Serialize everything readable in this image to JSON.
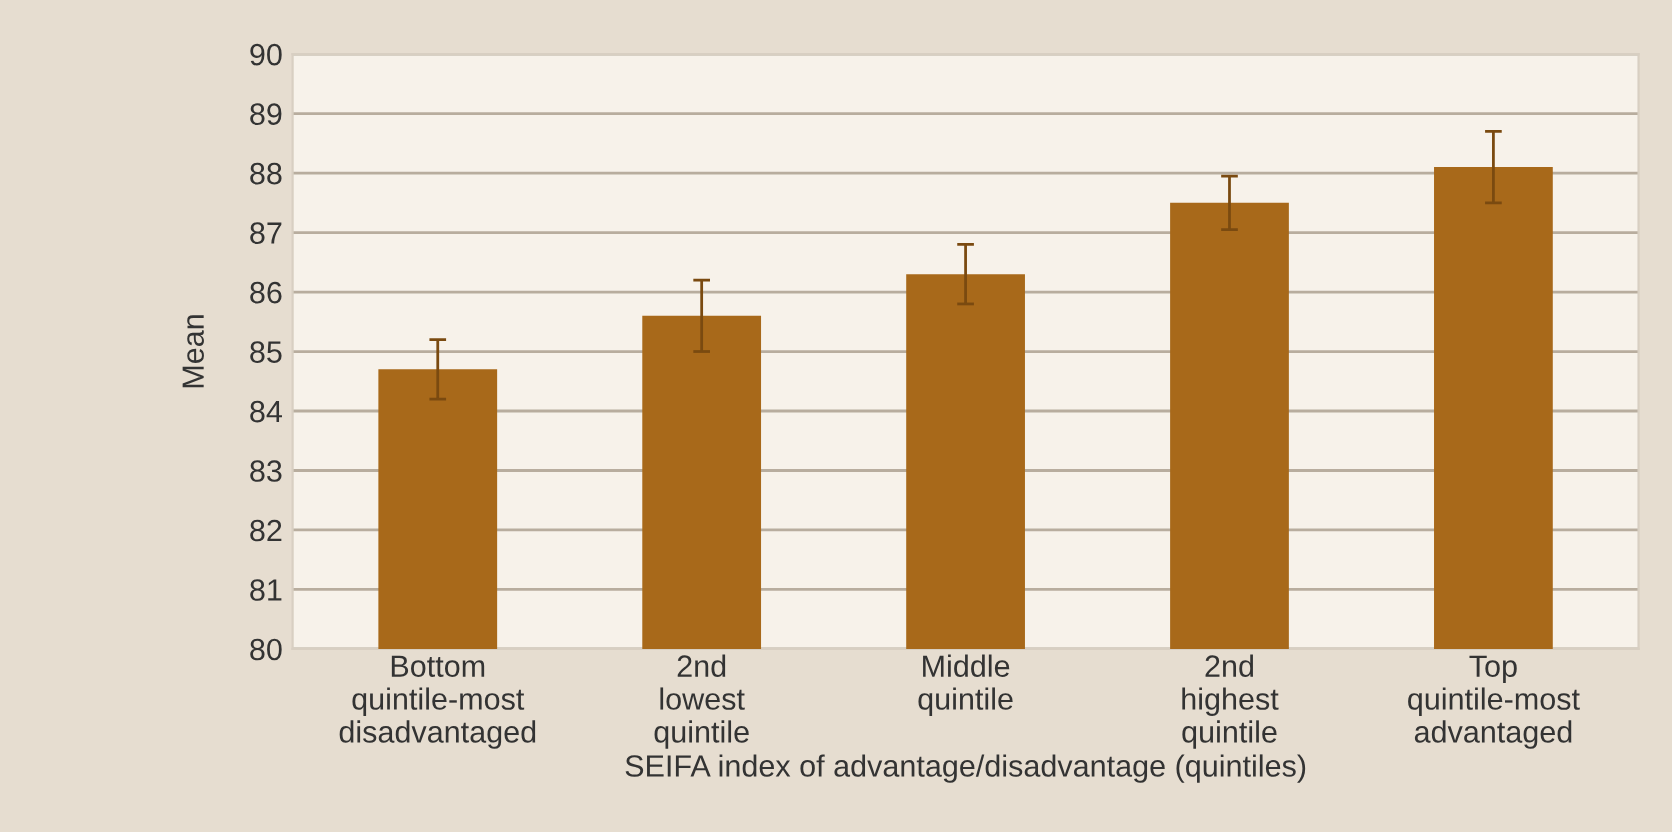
{
  "chart_data": {
    "type": "bar",
    "categories": [
      "Bottom\nquintile-most\ndisadvantaged",
      "2nd\nlowest\nquintile",
      "Middle\nquintile",
      "2nd\nhighest\nquintile",
      "Top\nquintile-most\nadvantaged"
    ],
    "values": [
      84.7,
      85.6,
      86.3,
      87.5,
      88.1
    ],
    "errors": [
      0.5,
      0.6,
      0.5,
      0.45,
      0.6
    ],
    "color": "#a8691a",
    "xlabel": "SEIFA index of advantage/disadvantage (quintiles)",
    "ylabel": "Mean",
    "ylim": [
      80,
      90
    ],
    "yticks": [
      80,
      81,
      82,
      83,
      84,
      85,
      86,
      87,
      88,
      89,
      90
    ],
    "grid": "y"
  }
}
